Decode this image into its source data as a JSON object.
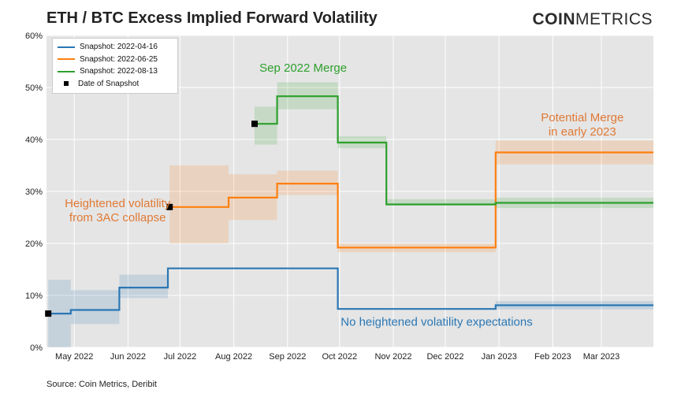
{
  "title": "ETH / BTC Excess Implied Forward Volatility",
  "logo": {
    "bold": "COIN",
    "light": "METRICS"
  },
  "source": "Source: Coin Metrics, Deribit",
  "colors": {
    "blue": "#2a77b4",
    "orange": "#ff7f0e",
    "green": "#2ca02c",
    "plot_bg": "#e5e5e5",
    "grid": "#ffffff"
  },
  "chart_data": {
    "type": "line",
    "step": true,
    "xaxis": {
      "ticks": [
        "May 2022",
        "Jun 2022",
        "Jul 2022",
        "Aug 2022",
        "Sep 2022",
        "Oct 2022",
        "Nov 2022",
        "Dec 2022",
        "Jan 2023",
        "Feb 2023",
        "Mar 2023"
      ],
      "range": [
        "2022-04-15",
        "2023-03-31"
      ]
    },
    "yaxis": {
      "ticks": [
        "0%",
        "10%",
        "20%",
        "30%",
        "40%",
        "50%",
        "60%"
      ],
      "ylim": [
        0,
        60
      ],
      "unit": "%"
    },
    "grid": true,
    "legend_position": "top-left",
    "legend": [
      "Snapshot: 2022-04-16",
      "Snapshot: 2022-06-25",
      "Snapshot: 2022-08-13",
      "Date of Snapshot"
    ],
    "series": [
      {
        "name": "Snapshot: 2022-04-16",
        "color": "#2a77b4",
        "snapshot": {
          "date": "2022-04-16",
          "value": 6.5
        },
        "steps": [
          {
            "start": "2022-04-16",
            "end": "2022-04-29",
            "value": 6.5,
            "band": [
              0,
              13
            ]
          },
          {
            "start": "2022-04-29",
            "end": "2022-05-27",
            "value": 7.2,
            "band": [
              4.5,
              11
            ]
          },
          {
            "start": "2022-05-27",
            "end": "2022-06-24",
            "value": 11.5,
            "band": [
              9.5,
              14
            ]
          },
          {
            "start": "2022-06-24",
            "end": "2022-09-30",
            "value": 15.2,
            "band": [
              15.2,
              15.2
            ]
          },
          {
            "start": "2022-09-30",
            "end": "2022-12-30",
            "value": 7.4,
            "band": [
              7.4,
              7.4
            ]
          },
          {
            "start": "2022-12-30",
            "end": "2023-03-31",
            "value": 8.1,
            "band": [
              7.3,
              8.9
            ]
          }
        ]
      },
      {
        "name": "Snapshot: 2022-06-25",
        "color": "#ff7f0e",
        "snapshot": {
          "date": "2022-06-25",
          "value": 27
        },
        "steps": [
          {
            "start": "2022-06-25",
            "end": "2022-07-29",
            "value": 27,
            "band": [
              20,
              35
            ]
          },
          {
            "start": "2022-07-29",
            "end": "2022-08-26",
            "value": 28.8,
            "band": [
              24.5,
              33.3
            ]
          },
          {
            "start": "2022-08-26",
            "end": "2022-09-30",
            "value": 31.5,
            "band": [
              29.3,
              34
            ]
          },
          {
            "start": "2022-09-30",
            "end": "2022-12-30",
            "value": 19.2,
            "band": [
              18.3,
              20
            ]
          },
          {
            "start": "2022-12-30",
            "end": "2023-03-31",
            "value": 37.5,
            "band": [
              35.2,
              39.8
            ]
          }
        ]
      },
      {
        "name": "Snapshot: 2022-08-13",
        "color": "#2ca02c",
        "snapshot": {
          "date": "2022-08-13",
          "value": 43
        },
        "steps": [
          {
            "start": "2022-08-13",
            "end": "2022-08-26",
            "value": 43,
            "band": [
              39,
              46.3
            ]
          },
          {
            "start": "2022-08-26",
            "end": "2022-09-30",
            "value": 48.3,
            "band": [
              45.8,
              51
            ]
          },
          {
            "start": "2022-09-30",
            "end": "2022-10-28",
            "value": 39.4,
            "band": [
              38.3,
              40.6
            ]
          },
          {
            "start": "2022-10-28",
            "end": "2022-12-30",
            "value": 27.5,
            "band": [
              27.3,
              28.5
            ]
          },
          {
            "start": "2022-12-30",
            "end": "2023-03-31",
            "value": 27.8,
            "band": [
              26.8,
              28.8
            ]
          }
        ]
      }
    ],
    "annotations": [
      {
        "lines": [
          "Sep 2022 Merge"
        ],
        "x": "2022-09-10",
        "y": 53,
        "color": "#2ca02c"
      },
      {
        "lines": [
          "Potential Merge",
          "in early 2023"
        ],
        "x": "2023-02-18",
        "y": 43.5,
        "color": "#e07a35"
      },
      {
        "lines": [
          "Heightened volatility",
          "from 3AC collapse"
        ],
        "x": "2022-05-26",
        "y": 27,
        "color": "#e07a35"
      },
      {
        "lines": [
          "No heightened volatility expectations"
        ],
        "x": "2022-11-26",
        "y": 4.2,
        "color": "#2a77b4"
      }
    ]
  }
}
